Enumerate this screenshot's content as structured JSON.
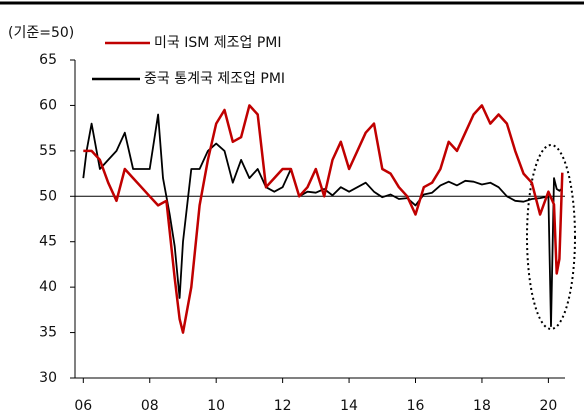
{
  "chart_data": {
    "type": "line",
    "subtitle": "(기준=50)",
    "xlim": [
      2005.75,
      2020.5
    ],
    "xticks": [
      {
        "value": 2006,
        "label": "06"
      },
      {
        "value": 2008,
        "label": "08"
      },
      {
        "value": 2010,
        "label": "10"
      },
      {
        "value": 2012,
        "label": "12"
      },
      {
        "value": 2014,
        "label": "14"
      },
      {
        "value": 2016,
        "label": "16"
      },
      {
        "value": 2018,
        "label": "18"
      },
      {
        "value": 2020,
        "label": "20"
      }
    ],
    "ylim": [
      30,
      65
    ],
    "yticks": [
      30,
      35,
      40,
      45,
      50,
      55,
      60,
      65
    ],
    "hline": 50,
    "series": [
      {
        "name": "미국 ISM 제조업 PMI",
        "color": "#c00000",
        "x": [
          2006,
          2006.25,
          2006.5,
          2006.75,
          2007,
          2007.25,
          2007.5,
          2007.75,
          2008,
          2008.25,
          2008.5,
          2008.75,
          2008.9,
          2009,
          2009.25,
          2009.5,
          2009.75,
          2010,
          2010.25,
          2010.5,
          2010.75,
          2011,
          2011.25,
          2011.5,
          2011.75,
          2012,
          2012.25,
          2012.5,
          2012.75,
          2013,
          2013.25,
          2013.5,
          2013.75,
          2014,
          2014.25,
          2014.5,
          2014.75,
          2015,
          2015.25,
          2015.5,
          2015.75,
          2016,
          2016.25,
          2016.5,
          2016.75,
          2017,
          2017.25,
          2017.5,
          2017.75,
          2018,
          2018.25,
          2018.5,
          2018.75,
          2019,
          2019.25,
          2019.5,
          2019.75,
          2020,
          2020.17,
          2020.25,
          2020.33,
          2020.42
        ],
        "values": [
          55,
          55,
          54,
          51.5,
          49.5,
          53,
          52,
          51,
          50,
          49,
          49.5,
          41,
          36.5,
          35,
          40,
          49,
          54,
          58,
          59.5,
          56,
          56.5,
          60,
          59,
          51,
          52,
          53,
          53,
          50,
          51,
          53,
          50,
          54,
          56,
          53,
          55,
          57,
          58,
          53,
          52.5,
          51,
          50,
          48,
          51,
          51.5,
          53,
          56,
          55,
          57,
          59,
          60,
          58,
          59,
          58,
          55,
          52.5,
          51.5,
          48,
          50.5,
          49.1,
          41.5,
          43.1,
          52.6
        ]
      },
      {
        "name": "중국 통계국 제조업 PMI",
        "color": "#000000",
        "x": [
          2006,
          2006.1,
          2006.25,
          2006.5,
          2006.75,
          2007,
          2007.25,
          2007.5,
          2007.75,
          2008,
          2008.25,
          2008.4,
          2008.6,
          2008.75,
          2008.9,
          2009,
          2009.25,
          2009.5,
          2009.75,
          2010,
          2010.25,
          2010.5,
          2010.75,
          2011,
          2011.25,
          2011.5,
          2011.75,
          2012,
          2012.25,
          2012.5,
          2012.75,
          2013,
          2013.25,
          2013.5,
          2013.75,
          2014,
          2014.25,
          2014.5,
          2014.75,
          2015,
          2015.25,
          2015.5,
          2015.75,
          2016,
          2016.25,
          2016.5,
          2016.75,
          2017,
          2017.25,
          2017.5,
          2017.75,
          2018,
          2018.25,
          2018.5,
          2018.75,
          2019,
          2019.25,
          2019.5,
          2019.75,
          2020,
          2020.08,
          2020.17,
          2020.25,
          2020.33,
          2020.42
        ],
        "values": [
          52,
          55,
          58,
          53,
          54,
          55,
          57,
          53,
          53,
          53,
          59,
          52,
          48,
          44.5,
          38.8,
          45,
          53,
          53,
          55,
          55.8,
          55,
          51.5,
          54,
          52,
          53,
          51,
          50.5,
          51,
          53,
          50,
          50.5,
          50.4,
          50.8,
          50.1,
          51,
          50.5,
          51,
          51.5,
          50.5,
          49.9,
          50.2,
          49.7,
          49.8,
          49,
          50.2,
          50.4,
          51.2,
          51.6,
          51.2,
          51.7,
          51.6,
          51.3,
          51.5,
          51,
          50,
          49.5,
          49.4,
          49.7,
          49.8,
          50,
          35.7,
          52,
          50.8,
          50.6,
          50.9
        ]
      }
    ]
  }
}
